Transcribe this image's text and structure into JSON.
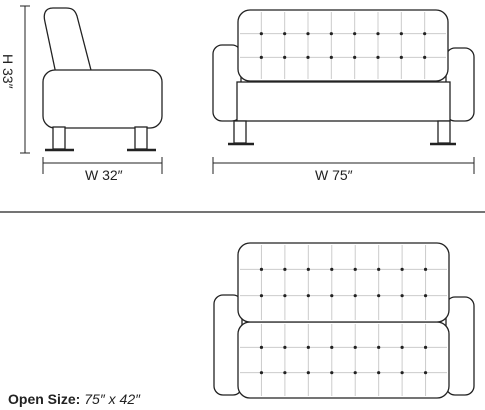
{
  "dimensions": {
    "height_label": "H 33″",
    "chair_width_label": "W 32″",
    "sofa_width_label": "W 75″"
  },
  "open_size": {
    "label": "Open Size:",
    "value": "75″ x 42″"
  },
  "colors": {
    "stroke": "#222222",
    "tuft_line": "#cccccc",
    "background": "#ffffff"
  }
}
